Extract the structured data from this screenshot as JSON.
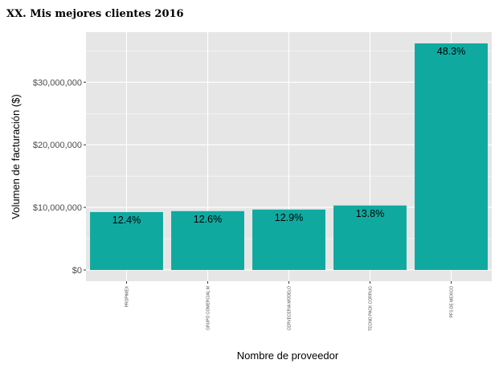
{
  "chart_data": {
    "type": "bar",
    "title": "XX. Mis mejores clientes 2016",
    "xlabel": "Nombre de proveedor",
    "ylabel": "Volumen de facturación ($)",
    "categories": [
      "PROPIMEX",
      "GRUPO COMERCIAL M",
      "CERVECERIA MODELO",
      "TECNO PACK CORRUG",
      "PFS DE MEXICO"
    ],
    "values": [
      9250000,
      9400000,
      9650000,
      10300000,
      36200000
    ],
    "value_labels": [
      "12.4%",
      "12.6%",
      "12.9%",
      "13.8%",
      "48.3%"
    ],
    "ylim": [
      -1800000,
      38000000
    ],
    "yticks": [
      0,
      10000000,
      20000000,
      30000000
    ],
    "ytick_labels": [
      "$0",
      "$10,000,000",
      "$20,000,000",
      "$30,000,000"
    ],
    "grid": true,
    "bar_color": "#0fa9a0",
    "panel_color": "#e6e6e6",
    "grid_color": "#ffffff"
  }
}
